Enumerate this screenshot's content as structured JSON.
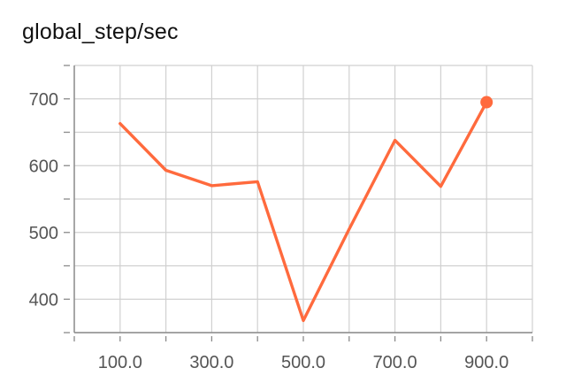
{
  "chart_data": {
    "type": "line",
    "title": "global_step/sec",
    "xlabel": "",
    "ylabel": "",
    "x": [
      100,
      200,
      300,
      400,
      500,
      600,
      700,
      800,
      900
    ],
    "series": [
      {
        "values": [
          663,
          593,
          570,
          576,
          368,
          505,
          638,
          569,
          695
        ],
        "color": "#ff6a3d"
      }
    ],
    "x_tick_values": [
      100,
      300,
      500,
      700,
      900
    ],
    "x_tick_labels": [
      "100.0",
      "300.0",
      "500.0",
      "700.0",
      "900.0"
    ],
    "y_tick_values": [
      400,
      500,
      600,
      700
    ],
    "y_tick_labels": [
      "400",
      "500",
      "600",
      "700"
    ],
    "xlim": [
      0,
      1000
    ],
    "ylim": [
      350,
      750
    ],
    "grid": true,
    "last_point_marker": true
  }
}
